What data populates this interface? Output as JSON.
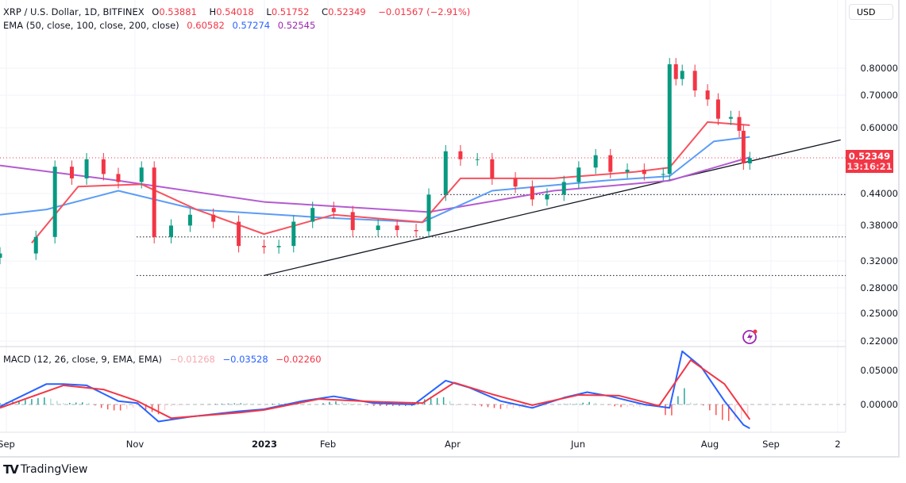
{
  "header": {
    "symbol": "XRP / U.S. Dollar, 1D, BITFINEX",
    "open_label": "O",
    "open": "0.53881",
    "high_label": "H",
    "high": "0.54018",
    "low_label": "L",
    "low": "0.51752",
    "close_label": "C",
    "close": "0.52349",
    "change": "−0.01567 (−2.91%)"
  },
  "ema_legend": {
    "label": "EMA (50, close, 100, close, 200, close)",
    "ema50": "0.60582",
    "ema100": "0.57274",
    "ema200": "0.52545"
  },
  "macd_legend": {
    "label": "MACD (12, 26, close, 9, EMA, EMA)",
    "hist": "−0.01268",
    "macd": "−0.03528",
    "signal": "−0.02260"
  },
  "currency": "USD",
  "last_price": {
    "value": "0.52349",
    "countdown": "13:16:21"
  },
  "price_axis": [
    "0.80000",
    "0.70000",
    "0.60000",
    "0.44000",
    "0.38000",
    "0.32000",
    "0.28000",
    "0.25000",
    "0.22000"
  ],
  "macd_axis": [
    "0.05000",
    "0.00000"
  ],
  "time_axis": [
    "Sep",
    "Nov",
    "2023",
    "Feb",
    "Apr",
    "Jun",
    "Aug",
    "Sep",
    "2"
  ],
  "brand": "TradingView",
  "colors": {
    "up": "#089981",
    "down": "#f23645",
    "ema50": "#f7525f",
    "ema100": "#5b9cf6",
    "ema200": "#b45bd1",
    "macd": "#2962ff",
    "signal": "#f23645"
  },
  "chart_data": {
    "type": "candlestick",
    "price_scale": "log",
    "ylim": [
      0.2,
      0.9
    ],
    "candles_close": [
      [
        "2022-08-29",
        0.333
      ],
      [
        "2022-09-15",
        0.36
      ],
      [
        "2022-09-24",
        0.502
      ],
      [
        "2022-10-02",
        0.475
      ],
      [
        "2022-10-09",
        0.52
      ],
      [
        "2022-10-17",
        0.485
      ],
      [
        "2022-10-24",
        0.467
      ],
      [
        "2022-11-04",
        0.5
      ],
      [
        "2022-11-10",
        0.36
      ],
      [
        "2022-11-18",
        0.38
      ],
      [
        "2022-11-27",
        0.4
      ],
      [
        "2022-12-08",
        0.387
      ],
      [
        "2022-12-20",
        0.345
      ],
      [
        "2023-01-01",
        0.343
      ],
      [
        "2023-01-08",
        0.345
      ],
      [
        "2023-01-15",
        0.387
      ],
      [
        "2023-01-24",
        0.413
      ],
      [
        "2023-02-03",
        0.405
      ],
      [
        "2023-02-12",
        0.372
      ],
      [
        "2023-02-24",
        0.38
      ],
      [
        "2023-03-05",
        0.372
      ],
      [
        "2023-03-14",
        0.37
      ],
      [
        "2023-03-20",
        0.44
      ],
      [
        "2023-03-28",
        0.54
      ],
      [
        "2023-04-04",
        0.52
      ],
      [
        "2023-04-12",
        0.52
      ],
      [
        "2023-04-19",
        0.475
      ],
      [
        "2023-04-30",
        0.457
      ],
      [
        "2023-05-08",
        0.43
      ],
      [
        "2023-05-15",
        0.44
      ],
      [
        "2023-05-23",
        0.467
      ],
      [
        "2023-05-30",
        0.5
      ],
      [
        "2023-06-07",
        0.53
      ],
      [
        "2023-06-14",
        0.49
      ],
      [
        "2023-06-22",
        0.495
      ],
      [
        "2023-06-30",
        0.485
      ],
      [
        "2023-07-09",
        0.485
      ],
      [
        "2023-07-12",
        0.815
      ],
      [
        "2023-07-15",
        0.76
      ],
      [
        "2023-07-18",
        0.79
      ],
      [
        "2023-07-24",
        0.72
      ],
      [
        "2023-07-30",
        0.69
      ],
      [
        "2023-08-04",
        0.63
      ],
      [
        "2023-08-10",
        0.635
      ],
      [
        "2023-08-14",
        0.595
      ],
      [
        "2023-08-16",
        0.51
      ],
      [
        "2023-08-19",
        0.523
      ]
    ],
    "ema50": [
      [
        "2022-09-13",
        0.35
      ],
      [
        "2022-10-05",
        0.457
      ],
      [
        "2022-11-04",
        0.462
      ],
      [
        "2022-11-30",
        0.41
      ],
      [
        "2023-01-01",
        0.365
      ],
      [
        "2023-02-03",
        0.4
      ],
      [
        "2023-03-17",
        0.386
      ],
      [
        "2023-04-04",
        0.475
      ],
      [
        "2023-05-18",
        0.475
      ],
      [
        "2023-06-26",
        0.49
      ],
      [
        "2023-07-12",
        0.5
      ],
      [
        "2023-07-30",
        0.62
      ],
      [
        "2023-08-19",
        0.611
      ]
    ],
    "ema100": [
      [
        "2022-08-29",
        0.4
      ],
      [
        "2022-09-20",
        0.41
      ],
      [
        "2022-10-24",
        0.448
      ],
      [
        "2022-11-30",
        0.41
      ],
      [
        "2023-01-27",
        0.395
      ],
      [
        "2023-03-17",
        0.386
      ],
      [
        "2023-04-19",
        0.448
      ],
      [
        "2023-06-11",
        0.47
      ],
      [
        "2023-07-12",
        0.48
      ],
      [
        "2023-08-02",
        0.566
      ],
      [
        "2023-08-19",
        0.578
      ]
    ],
    "ema200": [
      [
        "2022-08-29",
        0.505
      ],
      [
        "2022-10-24",
        0.47
      ],
      [
        "2023-01-01",
        0.425
      ],
      [
        "2023-03-20",
        0.405
      ],
      [
        "2023-05-18",
        0.448
      ],
      [
        "2023-07-12",
        0.47
      ],
      [
        "2023-08-19",
        0.525
      ]
    ],
    "trendline": [
      [
        "2023-01-01",
        0.3
      ],
      [
        "2023-10-01",
        0.57
      ]
    ],
    "horizontal_levels": [
      0.44,
      0.36,
      0.3
    ],
    "macd": [
      [
        "2022-08-29",
        -0.003
      ],
      [
        "2022-09-20",
        0.03
      ],
      [
        "2022-09-28",
        0.03
      ],
      [
        "2022-10-09",
        0.028
      ],
      [
        "2022-10-24",
        0.005
      ],
      [
        "2022-11-02",
        0.002
      ],
      [
        "2022-11-12",
        -0.025
      ],
      [
        "2022-11-27",
        -0.018
      ],
      [
        "2022-12-20",
        -0.01
      ],
      [
        "2023-01-01",
        -0.007
      ],
      [
        "2023-01-19",
        0.005
      ],
      [
        "2023-02-03",
        0.012
      ],
      [
        "2023-02-22",
        0.002
      ],
      [
        "2023-03-13",
        0.0
      ],
      [
        "2023-03-28",
        0.035
      ],
      [
        "2023-04-08",
        0.025
      ],
      [
        "2023-04-23",
        0.005
      ],
      [
        "2023-05-08",
        -0.005
      ],
      [
        "2023-05-23",
        0.01
      ],
      [
        "2023-06-03",
        0.018
      ],
      [
        "2023-06-14",
        0.012
      ],
      [
        "2023-06-30",
        0.0
      ],
      [
        "2023-07-12",
        -0.005
      ],
      [
        "2023-07-18",
        0.078
      ],
      [
        "2023-07-27",
        0.055
      ],
      [
        "2023-08-07",
        0.005
      ],
      [
        "2023-08-16",
        -0.03
      ],
      [
        "2023-08-19",
        -0.035
      ]
    ],
    "signal": [
      [
        "2022-08-29",
        -0.005
      ],
      [
        "2022-09-28",
        0.028
      ],
      [
        "2022-10-17",
        0.022
      ],
      [
        "2022-11-02",
        0.005
      ],
      [
        "2022-11-18",
        -0.02
      ],
      [
        "2022-12-20",
        -0.012
      ],
      [
        "2023-01-01",
        -0.008
      ],
      [
        "2023-01-27",
        0.008
      ],
      [
        "2023-02-22",
        0.004
      ],
      [
        "2023-03-17",
        0.002
      ],
      [
        "2023-04-01",
        0.032
      ],
      [
        "2023-04-19",
        0.015
      ],
      [
        "2023-05-08",
        -0.001
      ],
      [
        "2023-05-30",
        0.014
      ],
      [
        "2023-06-18",
        0.013
      ],
      [
        "2023-07-07",
        -0.002
      ],
      [
        "2023-07-22",
        0.065
      ],
      [
        "2023-08-07",
        0.03
      ],
      [
        "2023-08-19",
        -0.022
      ]
    ]
  }
}
